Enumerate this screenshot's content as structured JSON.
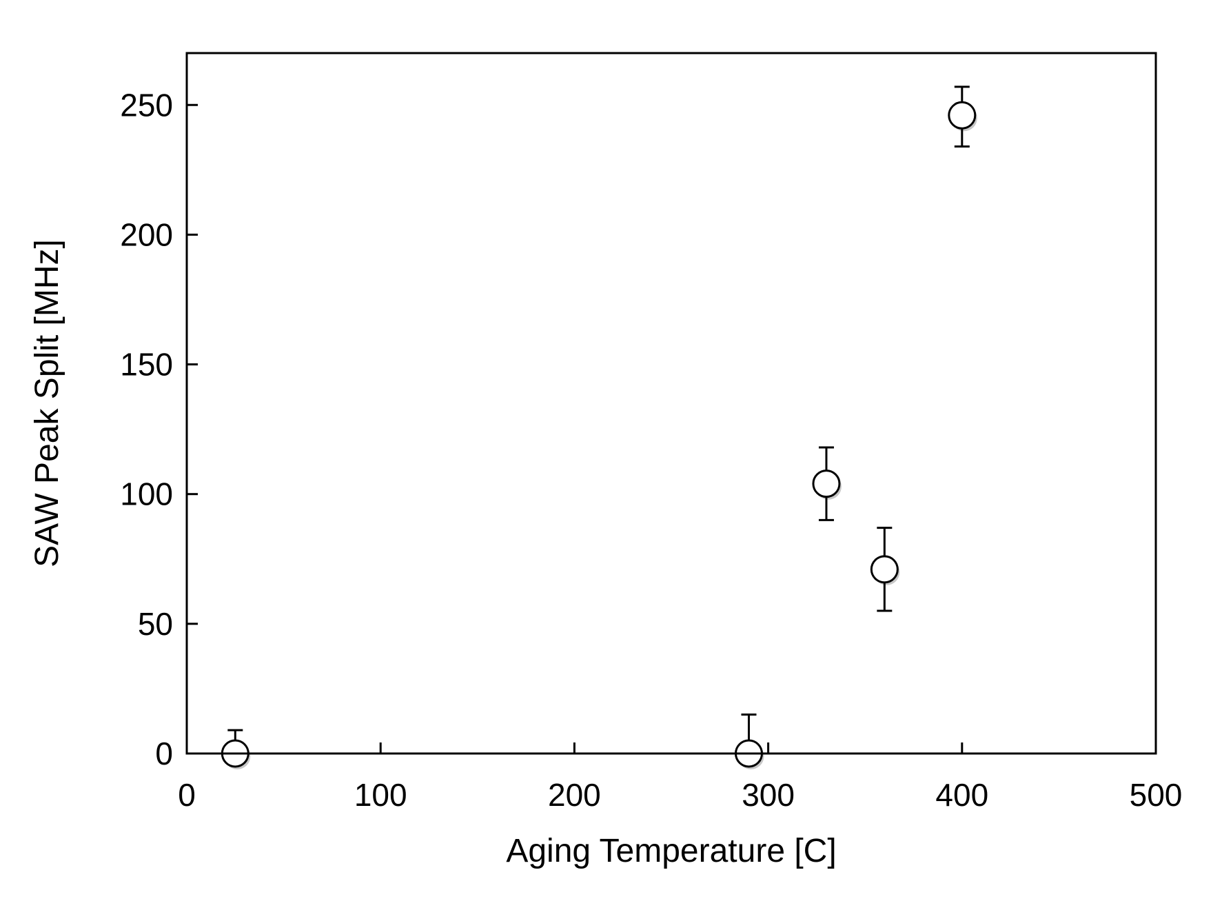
{
  "chart_data": {
    "type": "scatter",
    "title": "",
    "xlabel": "Aging Temperature [C]",
    "ylabel": "SAW Peak Split [MHz]",
    "xlim": [
      0,
      500
    ],
    "ylim": [
      0,
      270
    ],
    "x_ticks": [
      0,
      100,
      200,
      300,
      400,
      500
    ],
    "y_ticks": [
      0,
      50,
      100,
      150,
      200,
      250
    ],
    "x_tick_labels": [
      "0",
      "100",
      "200",
      "300",
      "400",
      "500"
    ],
    "y_tick_labels": [
      "0",
      "50",
      "100",
      "150",
      "200",
      "250"
    ],
    "grid": false,
    "marker": "open-circle",
    "series": [
      {
        "x": [
          25,
          290,
          330,
          360,
          400
        ],
        "y": [
          0,
          0,
          104,
          71,
          246
        ],
        "error_upper": [
          9,
          15,
          14,
          16,
          11
        ],
        "error_lower": [
          0,
          0,
          14,
          16,
          12
        ]
      }
    ]
  }
}
